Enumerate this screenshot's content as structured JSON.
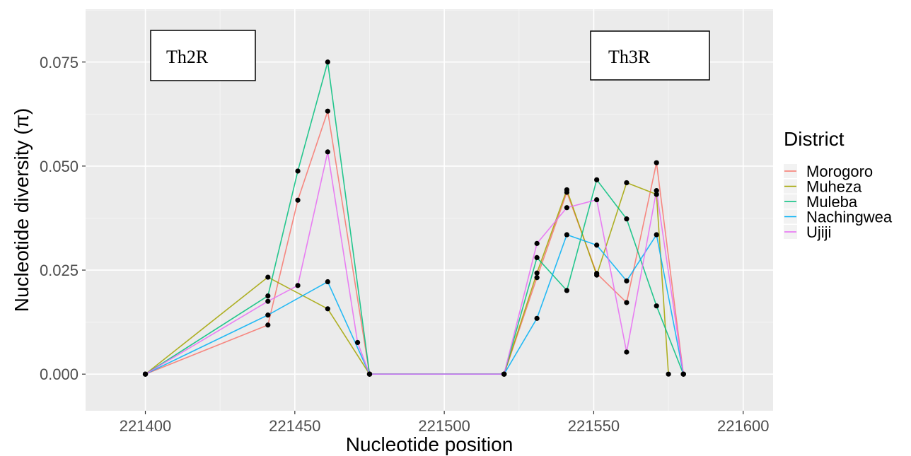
{
  "chart_data": {
    "type": "line",
    "xlabel": "Nucleotide position",
    "ylabel": "Nucleotide diversity (π)",
    "xlim": [
      221380,
      221610
    ],
    "ylim": [
      -0.0088,
      0.0877
    ],
    "x_ticks": [
      221400,
      221450,
      221500,
      221550,
      221600
    ],
    "x_tick_labels": [
      "221400",
      "221450",
      "221500",
      "221550",
      "221600"
    ],
    "y_ticks": [
      0,
      0.025,
      0.05,
      0.075
    ],
    "y_tick_labels": [
      "0.000",
      "0.025",
      "0.050",
      "0.075"
    ],
    "grid": true,
    "legend": {
      "title": "District",
      "position": "right"
    },
    "annotations": [
      "Th2R",
      "Th3R"
    ],
    "series": [
      {
        "name": "Morogoro",
        "color": "#F8766D",
        "x": [
          221400,
          221441,
          221451,
          221461,
          221475,
          221520,
          221531,
          221541,
          221551,
          221561,
          221571,
          221580
        ],
        "y": [
          0,
          0.0118,
          0.0418,
          0.0632,
          0,
          0,
          0.0232,
          0.0437,
          0.0242,
          0.0172,
          0.0508,
          0
        ]
      },
      {
        "name": "Muheza",
        "color": "#A3A500",
        "x": [
          221400,
          221441,
          221461,
          221475,
          221520,
          221531,
          221541,
          221551,
          221561,
          221571,
          221575
        ],
        "y": [
          0,
          0.0233,
          0.0157,
          0,
          0,
          0.0243,
          0.0443,
          0.0238,
          0.046,
          0.0432,
          0
        ]
      },
      {
        "name": "Muleba",
        "color": "#00BF7D",
        "x": [
          221400,
          221441,
          221451,
          221461,
          221475,
          221520,
          221531,
          221541,
          221551,
          221561,
          221571,
          221580
        ],
        "y": [
          0,
          0.0188,
          0.0488,
          0.075,
          0,
          0,
          0.028,
          0.0201,
          0.0467,
          0.0373,
          0.0164,
          0
        ]
      },
      {
        "name": "Nachingwea",
        "color": "#00B0F6",
        "x": [
          221400,
          221441,
          221461,
          221475,
          221520,
          221531,
          221541,
          221551,
          221561,
          221571,
          221580
        ],
        "y": [
          0,
          0.0142,
          0.0222,
          0,
          0,
          0.0134,
          0.0335,
          0.031,
          0.0224,
          0.0335,
          0
        ]
      },
      {
        "name": "Ujiji",
        "color": "#E76BF3",
        "x": [
          221400,
          221441,
          221451,
          221461,
          221471,
          221475,
          221520,
          221531,
          221541,
          221551,
          221561,
          221571,
          221580
        ],
        "y": [
          0,
          0.0175,
          0.0213,
          0.0534,
          0.0076,
          0,
          0,
          0.0314,
          0.04,
          0.0419,
          0.0053,
          0.0441,
          0
        ]
      }
    ]
  }
}
